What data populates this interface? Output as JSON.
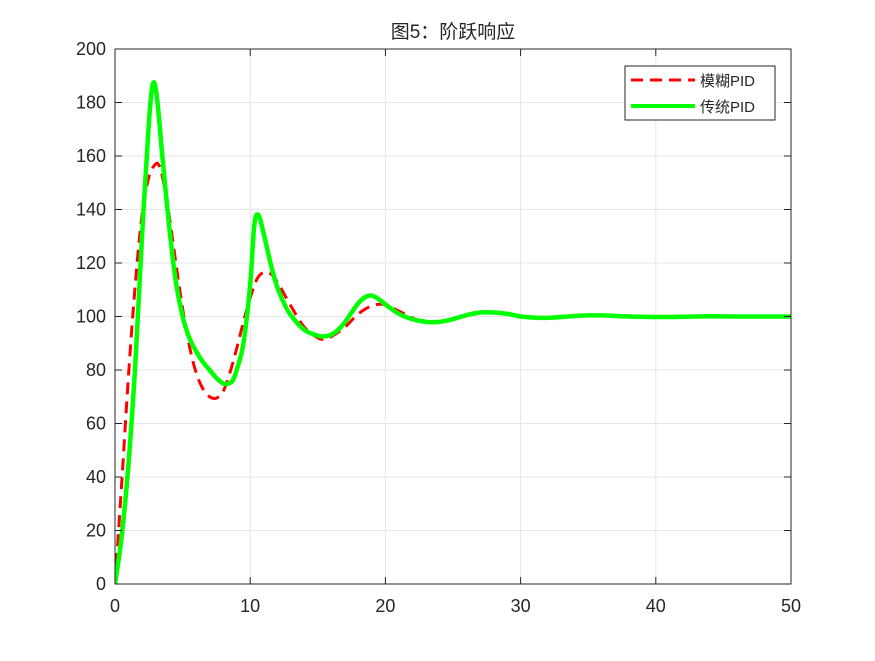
{
  "chart_data": {
    "type": "line",
    "title": "图5：阶跃响应",
    "xlabel": "",
    "ylabel": "",
    "xlim": [
      0,
      50
    ],
    "ylim": [
      0,
      200
    ],
    "xticks": [
      0,
      10,
      20,
      30,
      40,
      50
    ],
    "yticks": [
      0,
      20,
      40,
      60,
      80,
      100,
      120,
      140,
      160,
      180,
      200
    ],
    "grid": true,
    "legend_position": "top-right",
    "series": [
      {
        "name": "模糊PID",
        "color": "#ff0000",
        "line_style": "dashed",
        "x": [
          0,
          0.5,
          1,
          1.5,
          2,
          2.5,
          3,
          3.3,
          3.6,
          4,
          4.5,
          5,
          5.5,
          6,
          6.5,
          7,
          7.5,
          8,
          8.5,
          9,
          9.5,
          10,
          10.5,
          11,
          11.5,
          12,
          13,
          14,
          15,
          15.5,
          16,
          17,
          18,
          19,
          20,
          21,
          22,
          23,
          24,
          25,
          26,
          27,
          28,
          29,
          30,
          31,
          32,
          33,
          34,
          35,
          36,
          38,
          40,
          42,
          44,
          46,
          48,
          50
        ],
        "y": [
          0,
          38,
          78,
          112,
          138,
          152,
          157,
          156,
          150,
          138,
          120,
          103,
          89,
          79,
          73,
          70,
          69.5,
          72,
          79,
          88,
          98,
          107,
          114,
          116.5,
          116,
          113,
          104,
          96,
          92,
          91.5,
          92.5,
          96,
          101,
          104,
          104.5,
          102,
          99.5,
          98,
          98,
          99,
          100.5,
          101.5,
          101.5,
          101,
          100,
          99.5,
          99.6,
          100,
          100.4,
          100.5,
          100.3,
          99.9,
          99.9,
          100.1,
          100,
          100,
          100,
          100
        ]
      },
      {
        "name": "传统PID",
        "color": "#00ff00",
        "line_style": "solid",
        "x": [
          0,
          0.5,
          1,
          1.5,
          2,
          2.5,
          2.8,
          3.1,
          3.5,
          4,
          4.5,
          5,
          5.5,
          6,
          6.5,
          7,
          7.5,
          8,
          8.3,
          8.7,
          9,
          9.5,
          10,
          10.3,
          10.6,
          11,
          11.5,
          12,
          12.5,
          13,
          14,
          15,
          15.5,
          16,
          16.5,
          17,
          17.5,
          18,
          18.5,
          19,
          19.5,
          20,
          21,
          22,
          23,
          24,
          25,
          26,
          27,
          28,
          29,
          30,
          31,
          32,
          33,
          34,
          35,
          36,
          38,
          40,
          42,
          44,
          46,
          48,
          50
        ],
        "y": [
          0,
          18,
          45,
          82,
          130,
          172,
          187,
          182,
          160,
          134,
          113,
          100,
          92,
          87,
          83,
          80,
          77,
          75,
          74.8,
          76,
          80,
          90,
          112,
          134,
          138,
          131,
          120,
          111,
          105,
          100.5,
          95,
          92.8,
          92.6,
          93.2,
          95,
          97.8,
          101.5,
          105,
          107.2,
          107.8,
          106.5,
          104.5,
          101,
          99,
          98,
          98,
          99,
          100.5,
          101.5,
          101.5,
          101,
          100,
          99.6,
          99.5,
          99.8,
          100.2,
          100.4,
          100.4,
          100,
          99.8,
          99.9,
          100.1,
          100,
          100,
          100
        ]
      }
    ]
  }
}
